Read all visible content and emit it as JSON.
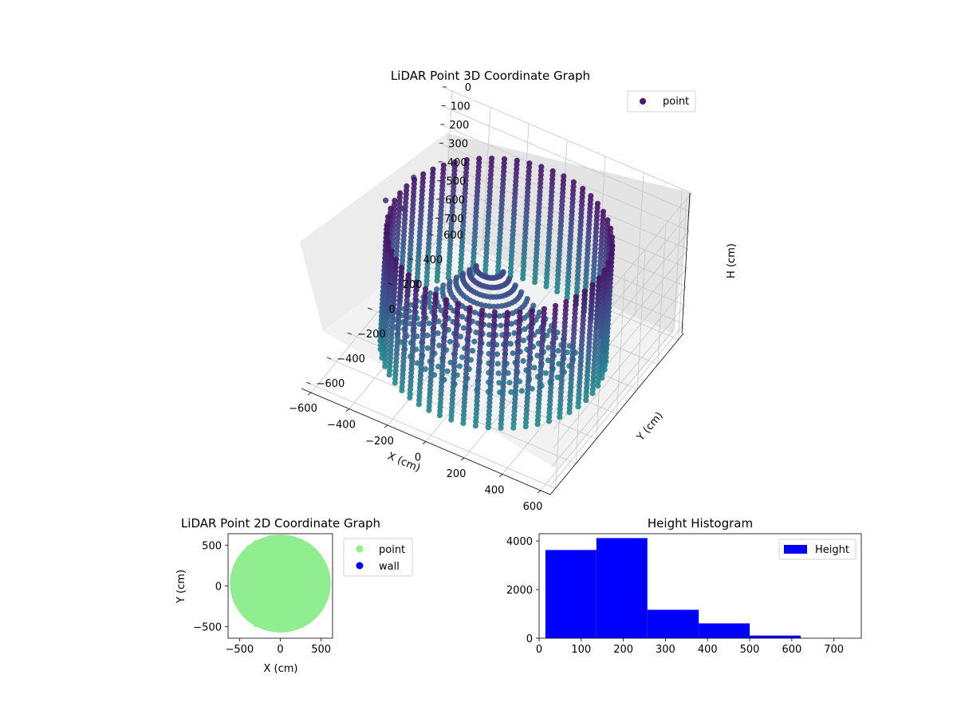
{
  "chart_data": [
    {
      "type": "scatter",
      "projection": "3d",
      "title": "LiDAR Point 3D Coordinate Graph",
      "xlabel": "X (cm)",
      "ylabel": "Y (cm)",
      "zlabel": "H (cm)",
      "xlim": [
        -650,
        650
      ],
      "ylim": [
        -650,
        650
      ],
      "zlim": [
        0,
        750
      ],
      "z_inverted": true,
      "xticks": [
        "−600",
        "−400",
        "−200",
        "0",
        "200",
        "400",
        "600"
      ],
      "yticks": [
        "−600",
        "−400",
        "−200",
        "0",
        "200",
        "400",
        "600"
      ],
      "zticks": [
        "0",
        "100",
        "200",
        "300",
        "400",
        "500",
        "600",
        "700"
      ],
      "legend": {
        "entries": [
          {
            "label": "point",
            "color": "#46196b"
          }
        ],
        "placement": "upper-right"
      },
      "colormap": "viridis",
      "grid": true,
      "structure": {
        "wall_radius_cm": 520,
        "wall_height_range_cm": [
          80,
          700
        ],
        "cone_apex": [
          -60,
          40,
          250
        ],
        "cone_height_range_cm": [
          250,
          660
        ],
        "outliers": [
          [
            -640,
            380,
            300
          ],
          [
            -630,
            80,
            220
          ],
          [
            -560,
            120,
            260
          ]
        ]
      }
    },
    {
      "type": "scatter",
      "title": "LiDAR Point 2D Coordinate Graph",
      "xlabel": "X (cm)",
      "ylabel": "Y (cm)",
      "xlim": [
        -640,
        640
      ],
      "ylim": [
        -640,
        640
      ],
      "xticks": [
        "−500",
        "0",
        "500"
      ],
      "yticks": [
        "−500",
        "0",
        "500"
      ],
      "series": [
        {
          "name": "point",
          "color": "#90ee90",
          "region": "filled disk, radius ≈ 600 cm"
        },
        {
          "name": "wall",
          "color": "#0000ff",
          "values": []
        }
      ],
      "legend_placement": "outside-right"
    },
    {
      "type": "bar",
      "title": "Height Histogram",
      "xlim": [
        0,
        765
      ],
      "ylim": [
        0,
        4300
      ],
      "xticks": [
        "0",
        "100",
        "200",
        "300",
        "400",
        "500",
        "600",
        "700"
      ],
      "yticks": [
        "0",
        "2000",
        "4000"
      ],
      "bins": [
        {
          "x0": 15,
          "x1": 136,
          "count": 3630
        },
        {
          "x0": 136,
          "x1": 257,
          "count": 4120
        },
        {
          "x0": 257,
          "x1": 379,
          "count": 1170
        },
        {
          "x0": 379,
          "x1": 500,
          "count": 610
        },
        {
          "x0": 500,
          "x1": 621,
          "count": 110
        },
        {
          "x0": 621,
          "x1": 742,
          "count": 0
        }
      ],
      "series": [
        {
          "name": "Height",
          "color": "#0000ff"
        }
      ],
      "legend_placement": "upper-right"
    }
  ]
}
